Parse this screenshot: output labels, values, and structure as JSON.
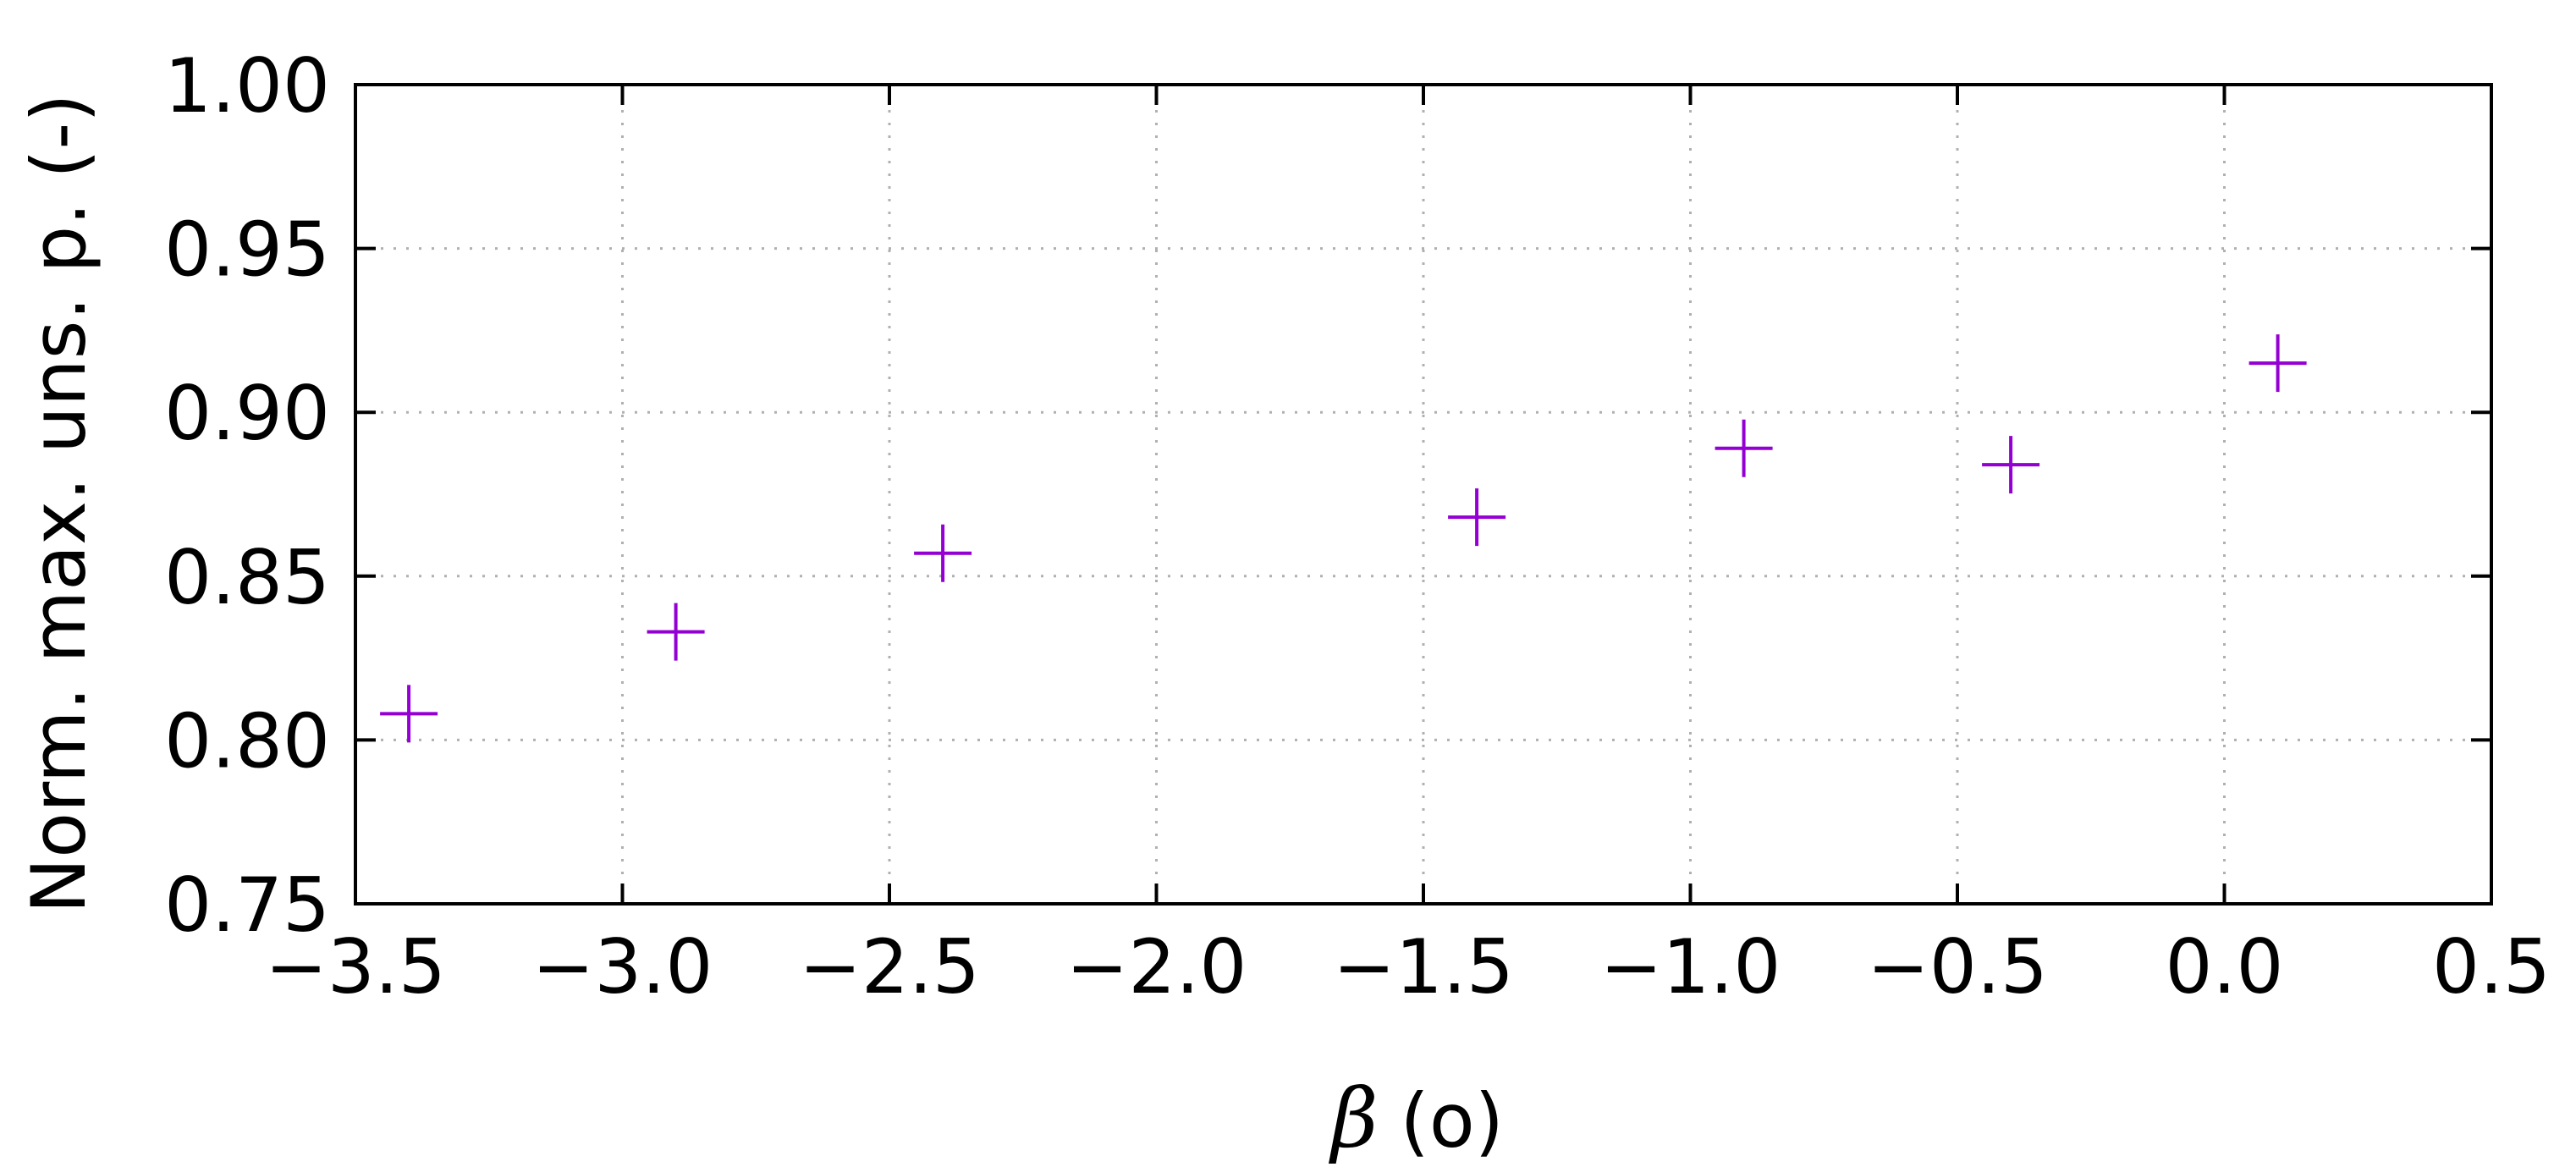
{
  "chart_data": {
    "type": "scatter",
    "title": "",
    "xlabel_symbol": "β",
    "xlabel_unit": "(o)",
    "ylabel": "Norm. max. uns. p. (-)",
    "xlim": [
      -3.5,
      0.5
    ],
    "ylim": [
      0.75,
      1.0
    ],
    "x_ticks": [
      -3.5,
      -3.0,
      -2.5,
      -2.0,
      -1.5,
      -1.0,
      -0.5,
      0.0,
      0.5
    ],
    "x_tick_labels": [
      "−3.5",
      "−3.0",
      "−2.5",
      "−2.0",
      "−1.5",
      "−1.0",
      "−0.5",
      "0.0",
      "0.5"
    ],
    "y_ticks": [
      0.75,
      0.8,
      0.85,
      0.9,
      0.95,
      1.0
    ],
    "y_tick_labels": [
      "0.75",
      "0.80",
      "0.85",
      "0.90",
      "0.95",
      "1.00"
    ],
    "grid": true,
    "marker": "plus",
    "color": "#9400d3",
    "series": [
      {
        "points": [
          {
            "x": -3.4,
            "y": 0.808
          },
          {
            "x": -2.9,
            "y": 0.833
          },
          {
            "x": -2.4,
            "y": 0.857
          },
          {
            "x": -1.4,
            "y": 0.868
          },
          {
            "x": -0.9,
            "y": 0.889
          },
          {
            "x": -0.4,
            "y": 0.884
          },
          {
            "x": 0.1,
            "y": 0.915
          }
        ]
      }
    ]
  }
}
